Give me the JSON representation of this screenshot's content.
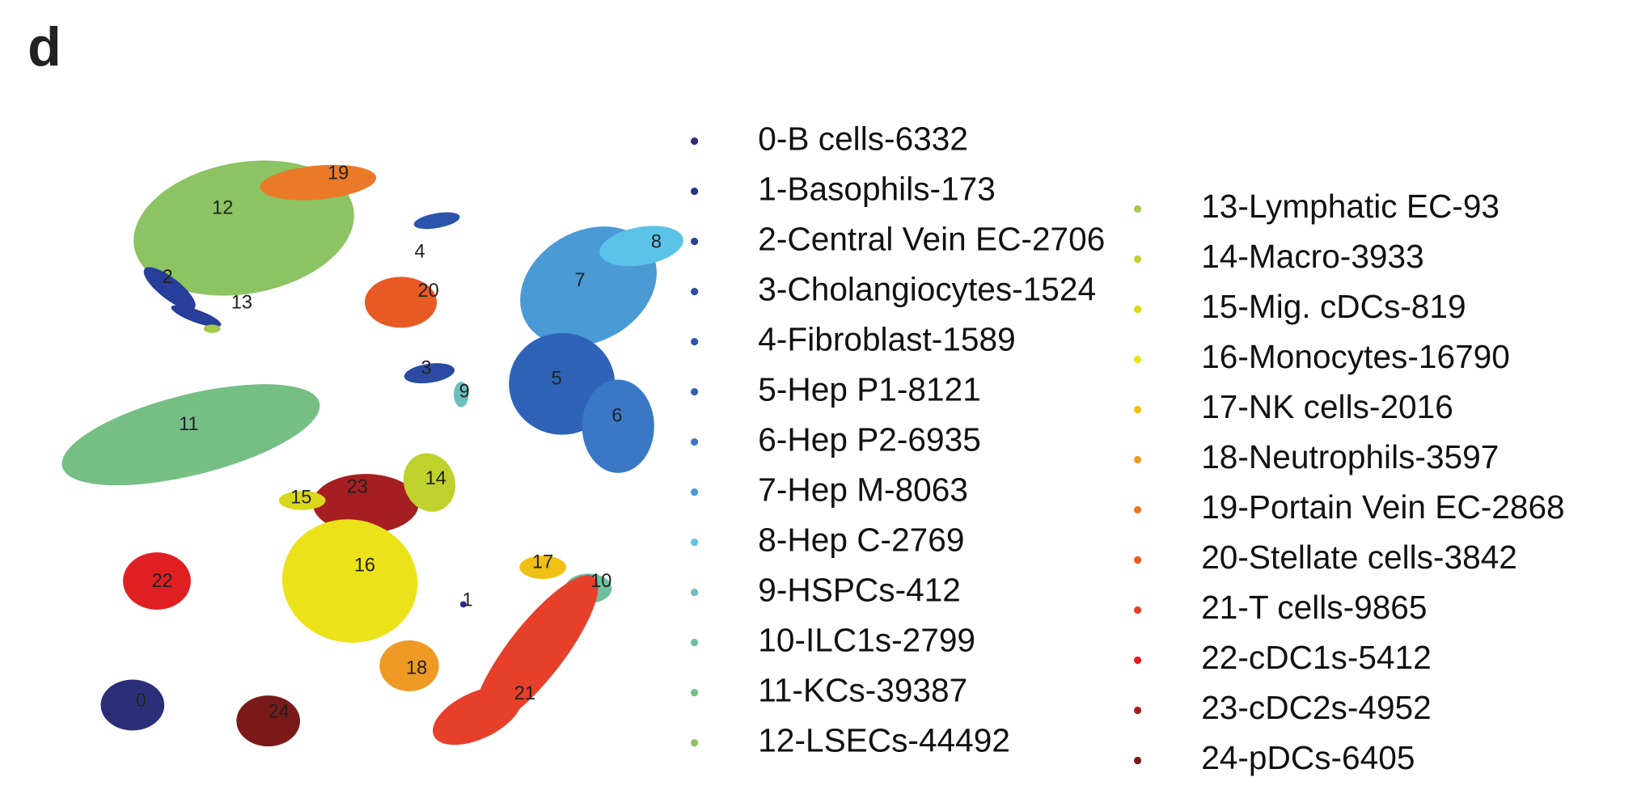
{
  "panel_label": "d",
  "clusters": [
    {
      "id": "0",
      "legend": "0-B cells-6332",
      "color": "#2b2f7a"
    },
    {
      "id": "1",
      "legend": "1-Basophils-173",
      "color": "#27318a"
    },
    {
      "id": "2",
      "legend": "2-Central Vein EC-2706",
      "color": "#283e9a"
    },
    {
      "id": "3",
      "legend": "3-Cholangiocytes-1524",
      "color": "#2a4aa3"
    },
    {
      "id": "4",
      "legend": "4-Fibroblast-1589",
      "color": "#2b55ad"
    },
    {
      "id": "5",
      "legend": "5-Hep P1-8121",
      "color": "#2e63b8"
    },
    {
      "id": "6",
      "legend": "6-Hep P2-6935",
      "color": "#3a78c6"
    },
    {
      "id": "7",
      "legend": "7-Hep M-8063",
      "color": "#4a9ad6"
    },
    {
      "id": "8",
      "legend": "8-Hep C-2769",
      "color": "#5bc3e8"
    },
    {
      "id": "9",
      "legend": "9-HSPCs-412",
      "color": "#6cbfbd"
    },
    {
      "id": "10",
      "legend": "10-ILC1s-2799",
      "color": "#6dbf9f"
    },
    {
      "id": "11",
      "legend": "11-KCs-39387",
      "color": "#75bf85"
    },
    {
      "id": "12",
      "legend": "12-LSECs-44492",
      "color": "#8cc363"
    },
    {
      "id": "13",
      "legend": "13-Lymphatic EC-93",
      "color": "#a5c94a"
    },
    {
      "id": "14",
      "legend": "14-Macro-3933",
      "color": "#bfd12c"
    },
    {
      "id": "15",
      "legend": "15-Mig. cDCs-819",
      "color": "#d9d81c"
    },
    {
      "id": "16",
      "legend": "16-Monocytes-16790",
      "color": "#ece21a"
    },
    {
      "id": "17",
      "legend": "17-NK cells-2016",
      "color": "#f0c014"
    },
    {
      "id": "18",
      "legend": "18-Neutrophils-3597",
      "color": "#ee9a25"
    },
    {
      "id": "19",
      "legend": "19-Portain Vein EC-2868",
      "color": "#eb7a28"
    },
    {
      "id": "20",
      "legend": "20-Stellate cells-3842",
      "color": "#e85a24"
    },
    {
      "id": "21",
      "legend": "21-T cells-9865",
      "color": "#e6402a"
    },
    {
      "id": "22",
      "legend": "22-cDC1s-5412",
      "color": "#e01f22"
    },
    {
      "id": "23",
      "legend": "23-cDC2s-4952",
      "color": "#a51e22"
    },
    {
      "id": "24",
      "legend": "24-pDCs-6405",
      "color": "#7a1a18"
    }
  ]
}
